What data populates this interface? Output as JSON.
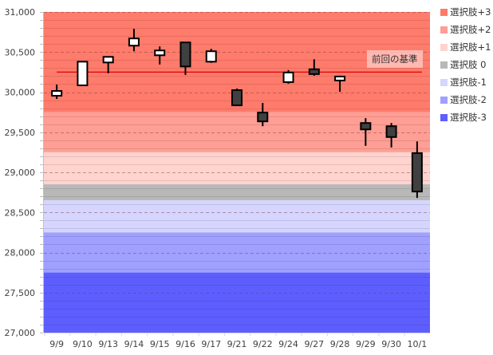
{
  "chart_data": {
    "type": "candlestick",
    "title": "",
    "xlabel": "",
    "ylabel": "",
    "ylim": [
      27000,
      31000
    ],
    "y_ticks": [
      27000,
      27500,
      28000,
      28500,
      29000,
      29500,
      30000,
      30500,
      31000
    ],
    "y_tick_labels": [
      "27,000",
      "27,500",
      "28,000",
      "28,500",
      "29,000",
      "29,500",
      "30,000",
      "30,500",
      "31,000"
    ],
    "minor_grid_step": 100,
    "grid": true,
    "categories": [
      "9/9",
      "9/10",
      "9/13",
      "9/14",
      "9/15",
      "9/16",
      "9/17",
      "9/21",
      "9/22",
      "9/24",
      "9/27",
      "9/28",
      "9/29",
      "9/30",
      "10/1"
    ],
    "series": [
      {
        "name": "OHLC",
        "open": [
          29955,
          30085,
          30370,
          30580,
          30460,
          30620,
          30380,
          30025,
          29745,
          30125,
          30285,
          30145,
          29615,
          29575,
          29240
        ],
        "high": [
          30095,
          30385,
          30445,
          30790,
          30570,
          30620,
          30540,
          30045,
          29865,
          30275,
          30410,
          30205,
          29675,
          29615,
          29385
        ],
        "low": [
          29915,
          30075,
          30235,
          30510,
          30345,
          30215,
          30365,
          29835,
          29575,
          30105,
          30205,
          30005,
          29330,
          29310,
          28680
        ],
        "close": [
          30015,
          30380,
          30440,
          30670,
          30520,
          30320,
          30510,
          29835,
          29635,
          30245,
          30225,
          30195,
          29535,
          29440,
          28760
        ]
      }
    ],
    "bands": [
      {
        "name": "選択肢+3",
        "from": 29750,
        "to": 31000,
        "color": "#FF7B6B"
      },
      {
        "name": "選択肢+2",
        "from": 29250,
        "to": 29750,
        "color": "#FF9E94"
      },
      {
        "name": "選択肢+1",
        "from": 28850,
        "to": 29250,
        "color": "#FFD3CE"
      },
      {
        "name": "選択肢 0",
        "from": 28650,
        "to": 28850,
        "color": "#B8B8B8"
      },
      {
        "name": "選択肢-1",
        "from": 28250,
        "to": 28650,
        "color": "#D5D5FF"
      },
      {
        "name": "選択肢-2",
        "from": 27750,
        "to": 28250,
        "color": "#A0A0FF"
      },
      {
        "name": "選択肢-3",
        "from": 27000,
        "to": 27750,
        "color": "#5E5EFF"
      }
    ],
    "reference_line": {
      "label": "前回の基準",
      "value": 30250,
      "color": "#E00000"
    },
    "legend_position": "right",
    "up_color": "#FFFFFF",
    "down_color": "#404040"
  }
}
